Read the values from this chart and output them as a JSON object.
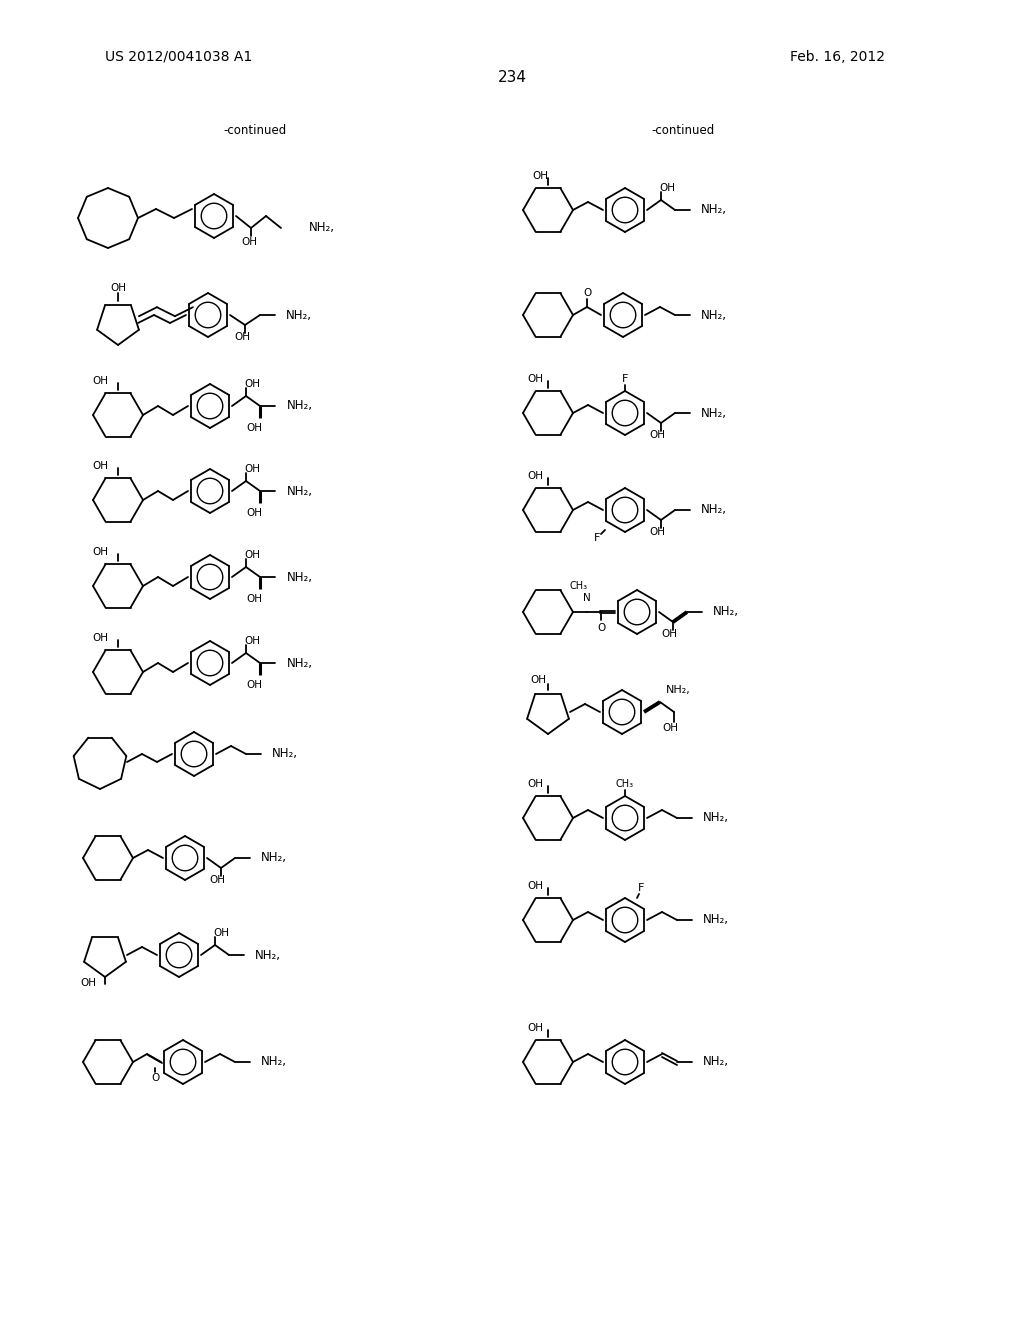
{
  "page_number": "234",
  "patent_number": "US 2012/0041038 A1",
  "date": "Feb. 16, 2012",
  "background_color": "#ffffff",
  "fig_width": 10.24,
  "fig_height": 13.2,
  "dpi": 100,
  "continued_label": "-continued"
}
